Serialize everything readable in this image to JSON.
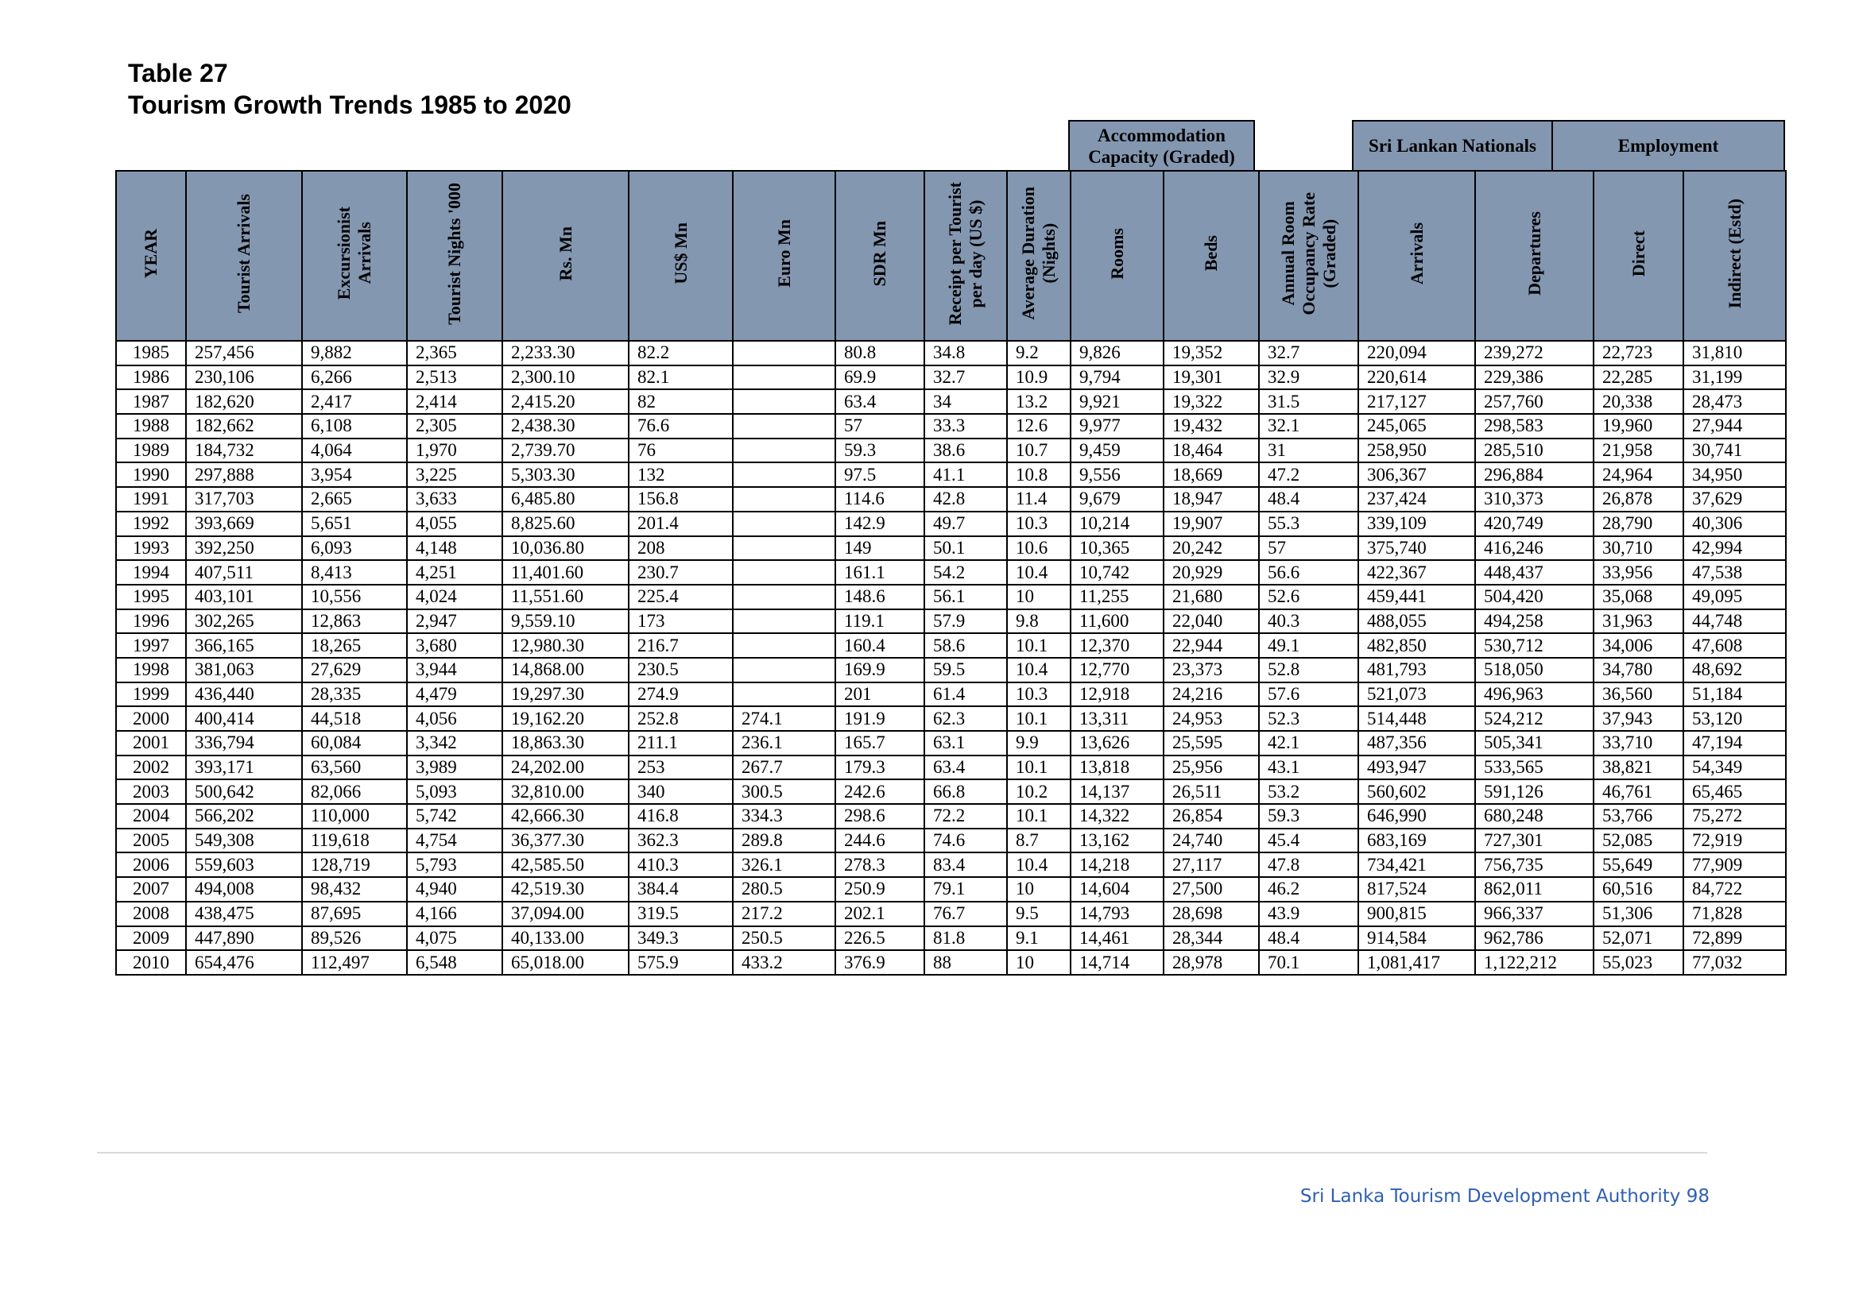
{
  "title": {
    "line1": "Table 27",
    "line2": "Tourism Growth Trends 1985 to 2020"
  },
  "group_headers": {
    "accommodation": "Accommodation Capacity (Graded)",
    "sri_lankan_nationals": "Sri Lankan Nationals",
    "employment": "Employment"
  },
  "columns": [
    "YEAR",
    "Tourist Arrivals",
    "Excursionist\nArrivals",
    "Tourist Nights '000",
    "Rs. Mn",
    "US$ Mn",
    "Euro Mn",
    "SDR Mn",
    "Receipt per Tourist\nper day (US $)",
    "Average Duration\n(Nights)",
    "Rooms",
    "Beds",
    "Annual Room\nOccupancy Rate\n(Graded)",
    "Arrivals",
    "Departures",
    "Direct",
    "Indirect (Estd)"
  ],
  "rows": [
    [
      "1985",
      "257,456",
      "9,882",
      "2,365",
      "2,233.30",
      "82.2",
      "",
      "80.8",
      "34.8",
      "9.2",
      "9,826",
      "19,352",
      "32.7",
      "220,094",
      "239,272",
      "22,723",
      "31,810"
    ],
    [
      "1986",
      "230,106",
      "6,266",
      "2,513",
      "2,300.10",
      "82.1",
      "",
      "69.9",
      "32.7",
      "10.9",
      "9,794",
      "19,301",
      "32.9",
      "220,614",
      "229,386",
      "22,285",
      "31,199"
    ],
    [
      "1987",
      "182,620",
      "2,417",
      "2,414",
      "2,415.20",
      "82",
      "",
      "63.4",
      "34",
      "13.2",
      "9,921",
      "19,322",
      "31.5",
      "217,127",
      "257,760",
      "20,338",
      "28,473"
    ],
    [
      "1988",
      "182,662",
      "6,108",
      "2,305",
      "2,438.30",
      "76.6",
      "",
      "57",
      "33.3",
      "12.6",
      "9,977",
      "19,432",
      "32.1",
      "245,065",
      "298,583",
      "19,960",
      "27,944"
    ],
    [
      "1989",
      "184,732",
      "4,064",
      "1,970",
      "2,739.70",
      "76",
      "",
      "59.3",
      "38.6",
      "10.7",
      "9,459",
      "18,464",
      "31",
      "258,950",
      "285,510",
      "21,958",
      "30,741"
    ],
    [
      "1990",
      "297,888",
      "3,954",
      "3,225",
      "5,303.30",
      "132",
      "",
      "97.5",
      "41.1",
      "10.8",
      "9,556",
      "18,669",
      "47.2",
      "306,367",
      "296,884",
      "24,964",
      "34,950"
    ],
    [
      "1991",
      "317,703",
      "2,665",
      "3,633",
      "6,485.80",
      "156.8",
      "",
      "114.6",
      "42.8",
      "11.4",
      "9,679",
      "18,947",
      "48.4",
      "237,424",
      "310,373",
      "26,878",
      "37,629"
    ],
    [
      "1992",
      "393,669",
      "5,651",
      "4,055",
      "8,825.60",
      "201.4",
      "",
      "142.9",
      "49.7",
      "10.3",
      "10,214",
      "19,907",
      "55.3",
      "339,109",
      "420,749",
      "28,790",
      "40,306"
    ],
    [
      "1993",
      "392,250",
      "6,093",
      "4,148",
      "10,036.80",
      "208",
      "",
      "149",
      "50.1",
      "10.6",
      "10,365",
      "20,242",
      "57",
      "375,740",
      "416,246",
      "30,710",
      "42,994"
    ],
    [
      "1994",
      "407,511",
      "8,413",
      "4,251",
      "11,401.60",
      "230.7",
      "",
      "161.1",
      "54.2",
      "10.4",
      "10,742",
      "20,929",
      "56.6",
      "422,367",
      "448,437",
      "33,956",
      "47,538"
    ],
    [
      "1995",
      "403,101",
      "10,556",
      "4,024",
      "11,551.60",
      "225.4",
      "",
      "148.6",
      "56.1",
      "10",
      "11,255",
      "21,680",
      "52.6",
      "459,441",
      "504,420",
      "35,068",
      "49,095"
    ],
    [
      "1996",
      "302,265",
      "12,863",
      "2,947",
      "9,559.10",
      "173",
      "",
      "119.1",
      "57.9",
      "9.8",
      "11,600",
      "22,040",
      "40.3",
      "488,055",
      "494,258",
      "31,963",
      "44,748"
    ],
    [
      "1997",
      "366,165",
      "18,265",
      "3,680",
      "12,980.30",
      "216.7",
      "",
      "160.4",
      "58.6",
      "10.1",
      "12,370",
      "22,944",
      "49.1",
      "482,850",
      "530,712",
      "34,006",
      "47,608"
    ],
    [
      "1998",
      "381,063",
      "27,629",
      "3,944",
      "14,868.00",
      "230.5",
      "",
      "169.9",
      "59.5",
      "10.4",
      "12,770",
      "23,373",
      "52.8",
      "481,793",
      "518,050",
      "34,780",
      "48,692"
    ],
    [
      "1999",
      "436,440",
      "28,335",
      "4,479",
      "19,297.30",
      "274.9",
      "",
      "201",
      "61.4",
      "10.3",
      "12,918",
      "24,216",
      "57.6",
      "521,073",
      "496,963",
      "36,560",
      "51,184"
    ],
    [
      "2000",
      "400,414",
      "44,518",
      "4,056",
      "19,162.20",
      "252.8",
      "274.1",
      "191.9",
      "62.3",
      "10.1",
      "13,311",
      "24,953",
      "52.3",
      "514,448",
      "524,212",
      "37,943",
      "53,120"
    ],
    [
      "2001",
      "336,794",
      "60,084",
      "3,342",
      "18,863.30",
      "211.1",
      "236.1",
      "165.7",
      "63.1",
      "9.9",
      "13,626",
      "25,595",
      "42.1",
      "487,356",
      "505,341",
      "33,710",
      "47,194"
    ],
    [
      "2002",
      "393,171",
      "63,560",
      "3,989",
      "24,202.00",
      "253",
      "267.7",
      "179.3",
      "63.4",
      "10.1",
      "13,818",
      "25,956",
      "43.1",
      "493,947",
      "533,565",
      "38,821",
      "54,349"
    ],
    [
      "2003",
      "500,642",
      "82,066",
      "5,093",
      "32,810.00",
      "340",
      "300.5",
      "242.6",
      "66.8",
      "10.2",
      "14,137",
      "26,511",
      "53.2",
      "560,602",
      "591,126",
      "46,761",
      "65,465"
    ],
    [
      "2004",
      "566,202",
      "110,000",
      "5,742",
      "42,666.30",
      "416.8",
      "334.3",
      "298.6",
      "72.2",
      "10.1",
      "14,322",
      "26,854",
      "59.3",
      "646,990",
      "680,248",
      "53,766",
      "75,272"
    ],
    [
      "2005",
      "549,308",
      "119,618",
      "4,754",
      "36,377.30",
      "362.3",
      "289.8",
      "244.6",
      "74.6",
      "8.7",
      "13,162",
      "24,740",
      "45.4",
      "683,169",
      "727,301",
      "52,085",
      "72,919"
    ],
    [
      "2006",
      "559,603",
      "128,719",
      "5,793",
      "42,585.50",
      "410.3",
      "326.1",
      "278.3",
      "83.4",
      "10.4",
      "14,218",
      "27,117",
      "47.8",
      "734,421",
      "756,735",
      "55,649",
      "77,909"
    ],
    [
      "2007",
      "494,008",
      "98,432",
      "4,940",
      "42,519.30",
      "384.4",
      "280.5",
      "250.9",
      "79.1",
      "10",
      "14,604",
      "27,500",
      "46.2",
      "817,524",
      "862,011",
      "60,516",
      "84,722"
    ],
    [
      "2008",
      "438,475",
      "87,695",
      "4,166",
      "37,094.00",
      "319.5",
      "217.2",
      "202.1",
      "76.7",
      "9.5",
      "14,793",
      "28,698",
      "43.9",
      "900,815",
      "966,337",
      "51,306",
      "71,828"
    ],
    [
      "2009",
      "447,890",
      "89,526",
      "4,075",
      "40,133.00",
      "349.3",
      "250.5",
      "226.5",
      "81.8",
      "9.1",
      "14,461",
      "28,344",
      "48.4",
      "914,584",
      "962,786",
      "52,071",
      "72,899"
    ],
    [
      "2010",
      "654,476",
      "112,497",
      "6,548",
      "65,018.00",
      "575.9",
      "433.2",
      "376.9",
      "88",
      "10",
      "14,714",
      "28,978",
      "70.1",
      "1,081,417",
      "1,122,212",
      "55,023",
      "77,032"
    ]
  ],
  "footer": "Sri Lanka Tourism Development Authority 98"
}
